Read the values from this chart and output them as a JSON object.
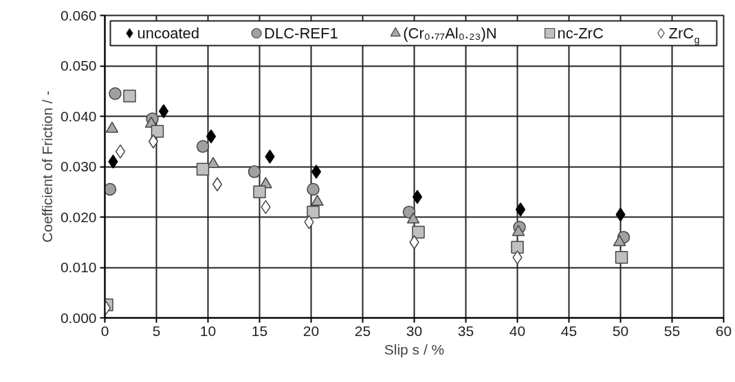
{
  "chart_data": {
    "type": "scatter",
    "xlabel": "Slip s / %",
    "ylabel": "Coefficient of Friction / -",
    "xlim": [
      0,
      60
    ],
    "ylim": [
      0,
      0.06
    ],
    "xticks": [
      0,
      5,
      10,
      15,
      20,
      25,
      30,
      35,
      40,
      45,
      50,
      55,
      60
    ],
    "yticks": [
      {
        "value": 0,
        "label": "0.000"
      },
      {
        "value": 0.01,
        "label": "0.010"
      },
      {
        "value": 0.02,
        "label": "0.020"
      },
      {
        "value": 0.03,
        "label": "0.030"
      },
      {
        "value": 0.04,
        "label": "0.040"
      },
      {
        "value": 0.05,
        "label": "0.050"
      },
      {
        "value": 0.06,
        "label": "0.060"
      }
    ],
    "grid": true,
    "legend": "top",
    "series": [
      {
        "name": "uncoated",
        "color": "#000000",
        "marker": "diamond",
        "x": [
          0.8,
          5.7,
          10.3,
          16.0,
          20.5,
          30.3,
          40.3,
          50.0
        ],
        "values": [
          0.031,
          0.041,
          0.036,
          0.032,
          0.029,
          0.024,
          0.0215,
          0.0205
        ]
      },
      {
        "name": "DLC-REF1",
        "color": "#a0a0a0",
        "marker": "circle",
        "x": [
          0.5,
          1.0,
          4.6,
          9.5,
          14.5,
          20.2,
          29.5,
          40.2,
          50.3
        ],
        "values": [
          0.0255,
          0.0445,
          0.0395,
          0.034,
          0.029,
          0.0255,
          0.021,
          0.018,
          0.016
        ]
      },
      {
        "name": "(Cr₀.₇₇Al₀.₂₃)N",
        "color": "#a8a8a8",
        "marker": "triangle",
        "x": [
          0.7,
          4.5,
          10.5,
          15.6,
          20.6,
          29.9,
          40.1,
          49.9
        ],
        "values": [
          0.0375,
          0.0385,
          0.0305,
          0.0265,
          0.023,
          0.0195,
          0.017,
          0.015
        ]
      },
      {
        "name": "nc-ZrC",
        "color": "#c0c0c0",
        "marker": "square",
        "x": [
          0.2,
          2.4,
          5.1,
          9.5,
          15.0,
          20.2,
          30.4,
          40.0,
          50.1
        ],
        "values": [
          0.0026,
          0.044,
          0.037,
          0.0295,
          0.025,
          0.021,
          0.017,
          0.014,
          0.012
        ]
      },
      {
        "name": "ZrC$_{g}$",
        "color": "#ffffff",
        "marker": "diamond",
        "x": [
          0.1,
          1.5,
          4.7,
          10.9,
          15.6,
          19.8,
          30.0,
          40.0
        ],
        "values": [
          0.002,
          0.033,
          0.035,
          0.0265,
          0.022,
          0.019,
          0.015,
          0.012
        ]
      }
    ]
  }
}
